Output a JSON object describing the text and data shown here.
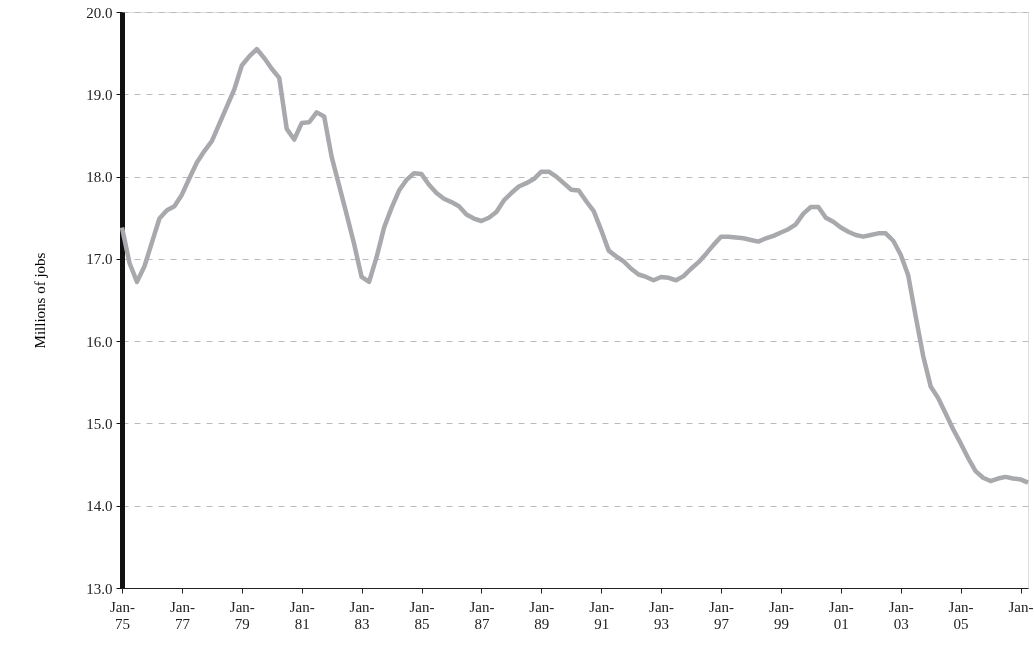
{
  "chart_data": {
    "type": "line",
    "ylabel": "Millions of jobs",
    "categories": [
      "Jan-75",
      null,
      null,
      null,
      null,
      null,
      null,
      null,
      "Jan-77",
      null,
      null,
      null,
      null,
      null,
      null,
      null,
      "Jan-79",
      null,
      null,
      null,
      null,
      null,
      null,
      null,
      "Jan-81",
      null,
      null,
      null,
      null,
      null,
      null,
      null,
      "Jan-83",
      null,
      null,
      null,
      null,
      null,
      null,
      null,
      "Jan-85",
      null,
      null,
      null,
      null,
      null,
      null,
      null,
      "Jan-87",
      null,
      null,
      null,
      null,
      null,
      null,
      null,
      "Jan-89",
      null,
      null,
      null,
      null,
      null,
      null,
      null,
      "Jan-91",
      null,
      null,
      null,
      null,
      null,
      null,
      null,
      "Jan-93",
      null,
      null,
      null,
      null,
      null,
      null,
      null,
      "Jan-97",
      null,
      null,
      null,
      null,
      null,
      null,
      null,
      "Jan-99",
      null,
      null,
      null,
      null,
      null,
      null,
      null,
      "Jan-01",
      null,
      null,
      null,
      null,
      null,
      null,
      null,
      "Jan-03",
      null,
      null,
      null,
      null,
      null,
      null,
      null,
      "Jan-05",
      null,
      null,
      null,
      null,
      null,
      null,
      null,
      "Jan-",
      null
    ],
    "series": [
      {
        "color": "#a7a9ac",
        "values": [
          17.38,
          16.95,
          16.72,
          16.91,
          17.2,
          17.49,
          17.59,
          17.64,
          17.78,
          17.98,
          18.17,
          18.31,
          18.43,
          18.64,
          18.85,
          19.06,
          19.35,
          19.46,
          19.55,
          19.44,
          19.31,
          19.2,
          18.58,
          18.45,
          18.65,
          18.66,
          18.78,
          18.73,
          18.24,
          17.89,
          17.54,
          17.18,
          16.78,
          16.72,
          17.02,
          17.38,
          17.62,
          17.83,
          17.96,
          18.04,
          18.03,
          17.9,
          17.8,
          17.73,
          17.69,
          17.64,
          17.54,
          17.49,
          17.46,
          17.5,
          17.57,
          17.71,
          17.8,
          17.88,
          17.92,
          17.97,
          18.06,
          18.06,
          18.0,
          17.92,
          17.84,
          17.83,
          17.7,
          17.58,
          17.35,
          17.1,
          17.03,
          16.97,
          16.88,
          16.81,
          16.78,
          16.74,
          16.78,
          16.77,
          16.74,
          16.79,
          16.88,
          16.96,
          17.06,
          17.17,
          17.27,
          17.27,
          17.26,
          17.25,
          17.23,
          17.21,
          17.25,
          17.28,
          17.32,
          17.36,
          17.42,
          17.55,
          17.63,
          17.63,
          17.5,
          17.45,
          17.38,
          17.33,
          17.29,
          17.27,
          17.29,
          17.31,
          17.31,
          17.22,
          17.05,
          16.8,
          16.3,
          15.82,
          15.45,
          15.31,
          15.12,
          14.93,
          14.76,
          14.58,
          14.42,
          14.34,
          14.3,
          14.33,
          14.35,
          14.33,
          14.32,
          14.28
        ]
      }
    ],
    "ylim": [
      13,
      20
    ],
    "yticks": [
      {
        "value": 13,
        "label": "13.0"
      },
      {
        "value": 14,
        "label": "14.0"
      },
      {
        "value": 15,
        "label": "15.0"
      },
      {
        "value": 16,
        "label": "16.0"
      },
      {
        "value": 17,
        "label": "17.0"
      },
      {
        "value": 18,
        "label": "18.0"
      },
      {
        "value": 19,
        "label": "19.0"
      },
      {
        "value": 20,
        "label": "20.0"
      }
    ],
    "grid": "y",
    "marker": "none",
    "line_style": "solid"
  }
}
